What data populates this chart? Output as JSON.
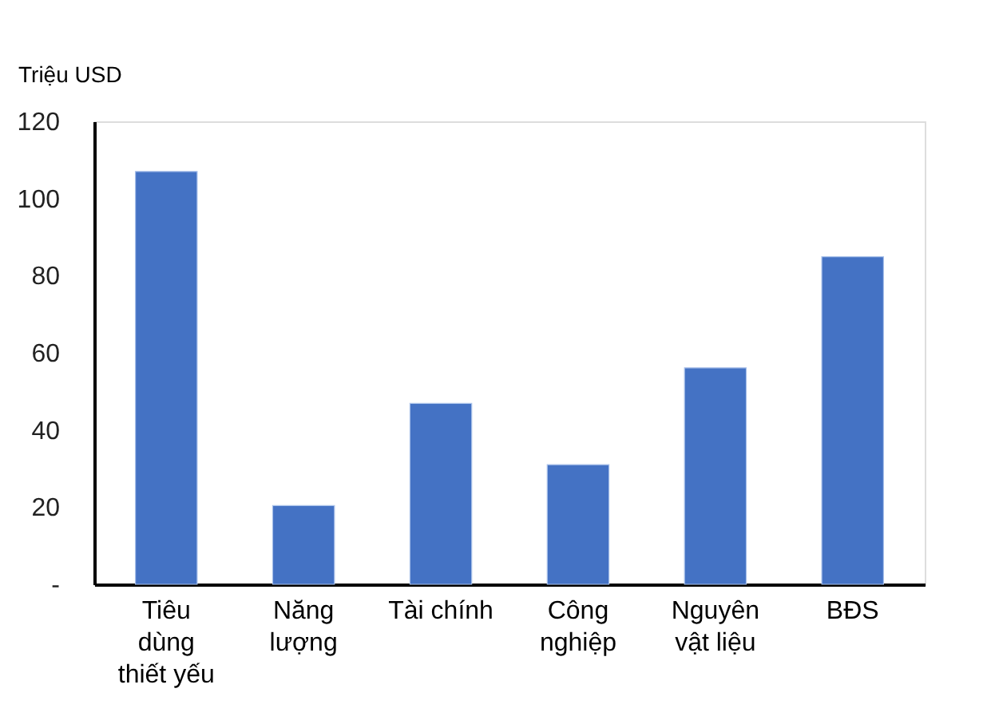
{
  "chart_data": {
    "type": "bar",
    "ylabel": "Triệu USD",
    "categories": [
      "Tiêu\ndùng\nthiết yếu",
      "Năng\nlượng",
      "Tài chính",
      "Công\nnghiệp",
      "Nguyên\nvật liệu",
      "BĐS"
    ],
    "values": [
      107,
      20.4,
      46.9,
      31,
      56.1,
      84.9
    ],
    "color": "#4472c4",
    "ylim": [
      0,
      120
    ],
    "yticks": [
      {
        "value": 0,
        "label": "-"
      },
      20,
      40,
      60,
      80,
      100,
      120
    ],
    "grid": false
  }
}
